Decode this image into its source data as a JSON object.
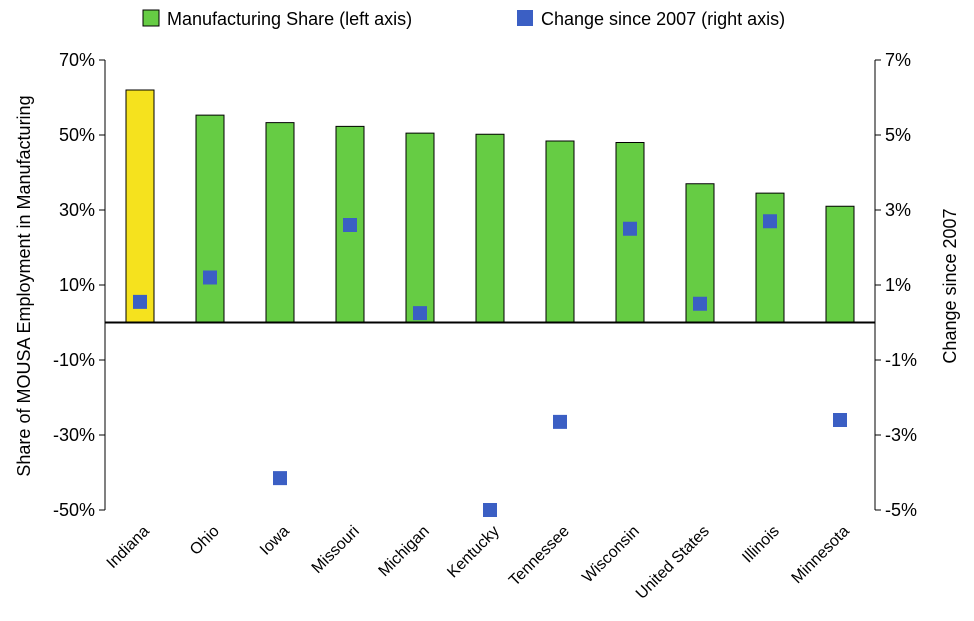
{
  "chart_data": {
    "type": "bar",
    "categories": [
      "Indiana",
      "Ohio",
      "Iowa",
      "Missouri",
      "Michigan",
      "Kentucky",
      "Tennessee",
      "Wisconsin",
      "United States",
      "Illinois",
      "Minnesota"
    ],
    "series": [
      {
        "name": "Manufacturing Share (left axis)",
        "type": "bar",
        "axis": "left",
        "values": [
          62,
          55.3,
          53.3,
          52.3,
          50.5,
          50.2,
          48.4,
          48,
          37,
          34.5,
          31
        ],
        "color": "#66cc44",
        "highlight_color": "#f5e21e",
        "highlight_index": 0
      },
      {
        "name": "Change since 2007 (right axis)",
        "type": "scatter",
        "axis": "right",
        "values": [
          0.55,
          1.2,
          -4.15,
          2.6,
          0.25,
          -5,
          -2.65,
          2.5,
          0.5,
          2.7,
          -2.6
        ],
        "color": "#3b5fc4"
      }
    ],
    "ylabel": "Share of MOUSA Employment in Manufacturing",
    "y2label": "Change since 2007",
    "ylim": [
      -50,
      70
    ],
    "y2lim": [
      -5,
      7
    ],
    "yticks": [
      "70%",
      "50%",
      "30%",
      "10%",
      "-10%",
      "-30%",
      "-50%"
    ],
    "y2ticks": [
      "7%",
      "5%",
      "3%",
      "1%",
      "-1%",
      "-3%",
      "-5%"
    ],
    "grid": false,
    "legend_position": "top"
  }
}
